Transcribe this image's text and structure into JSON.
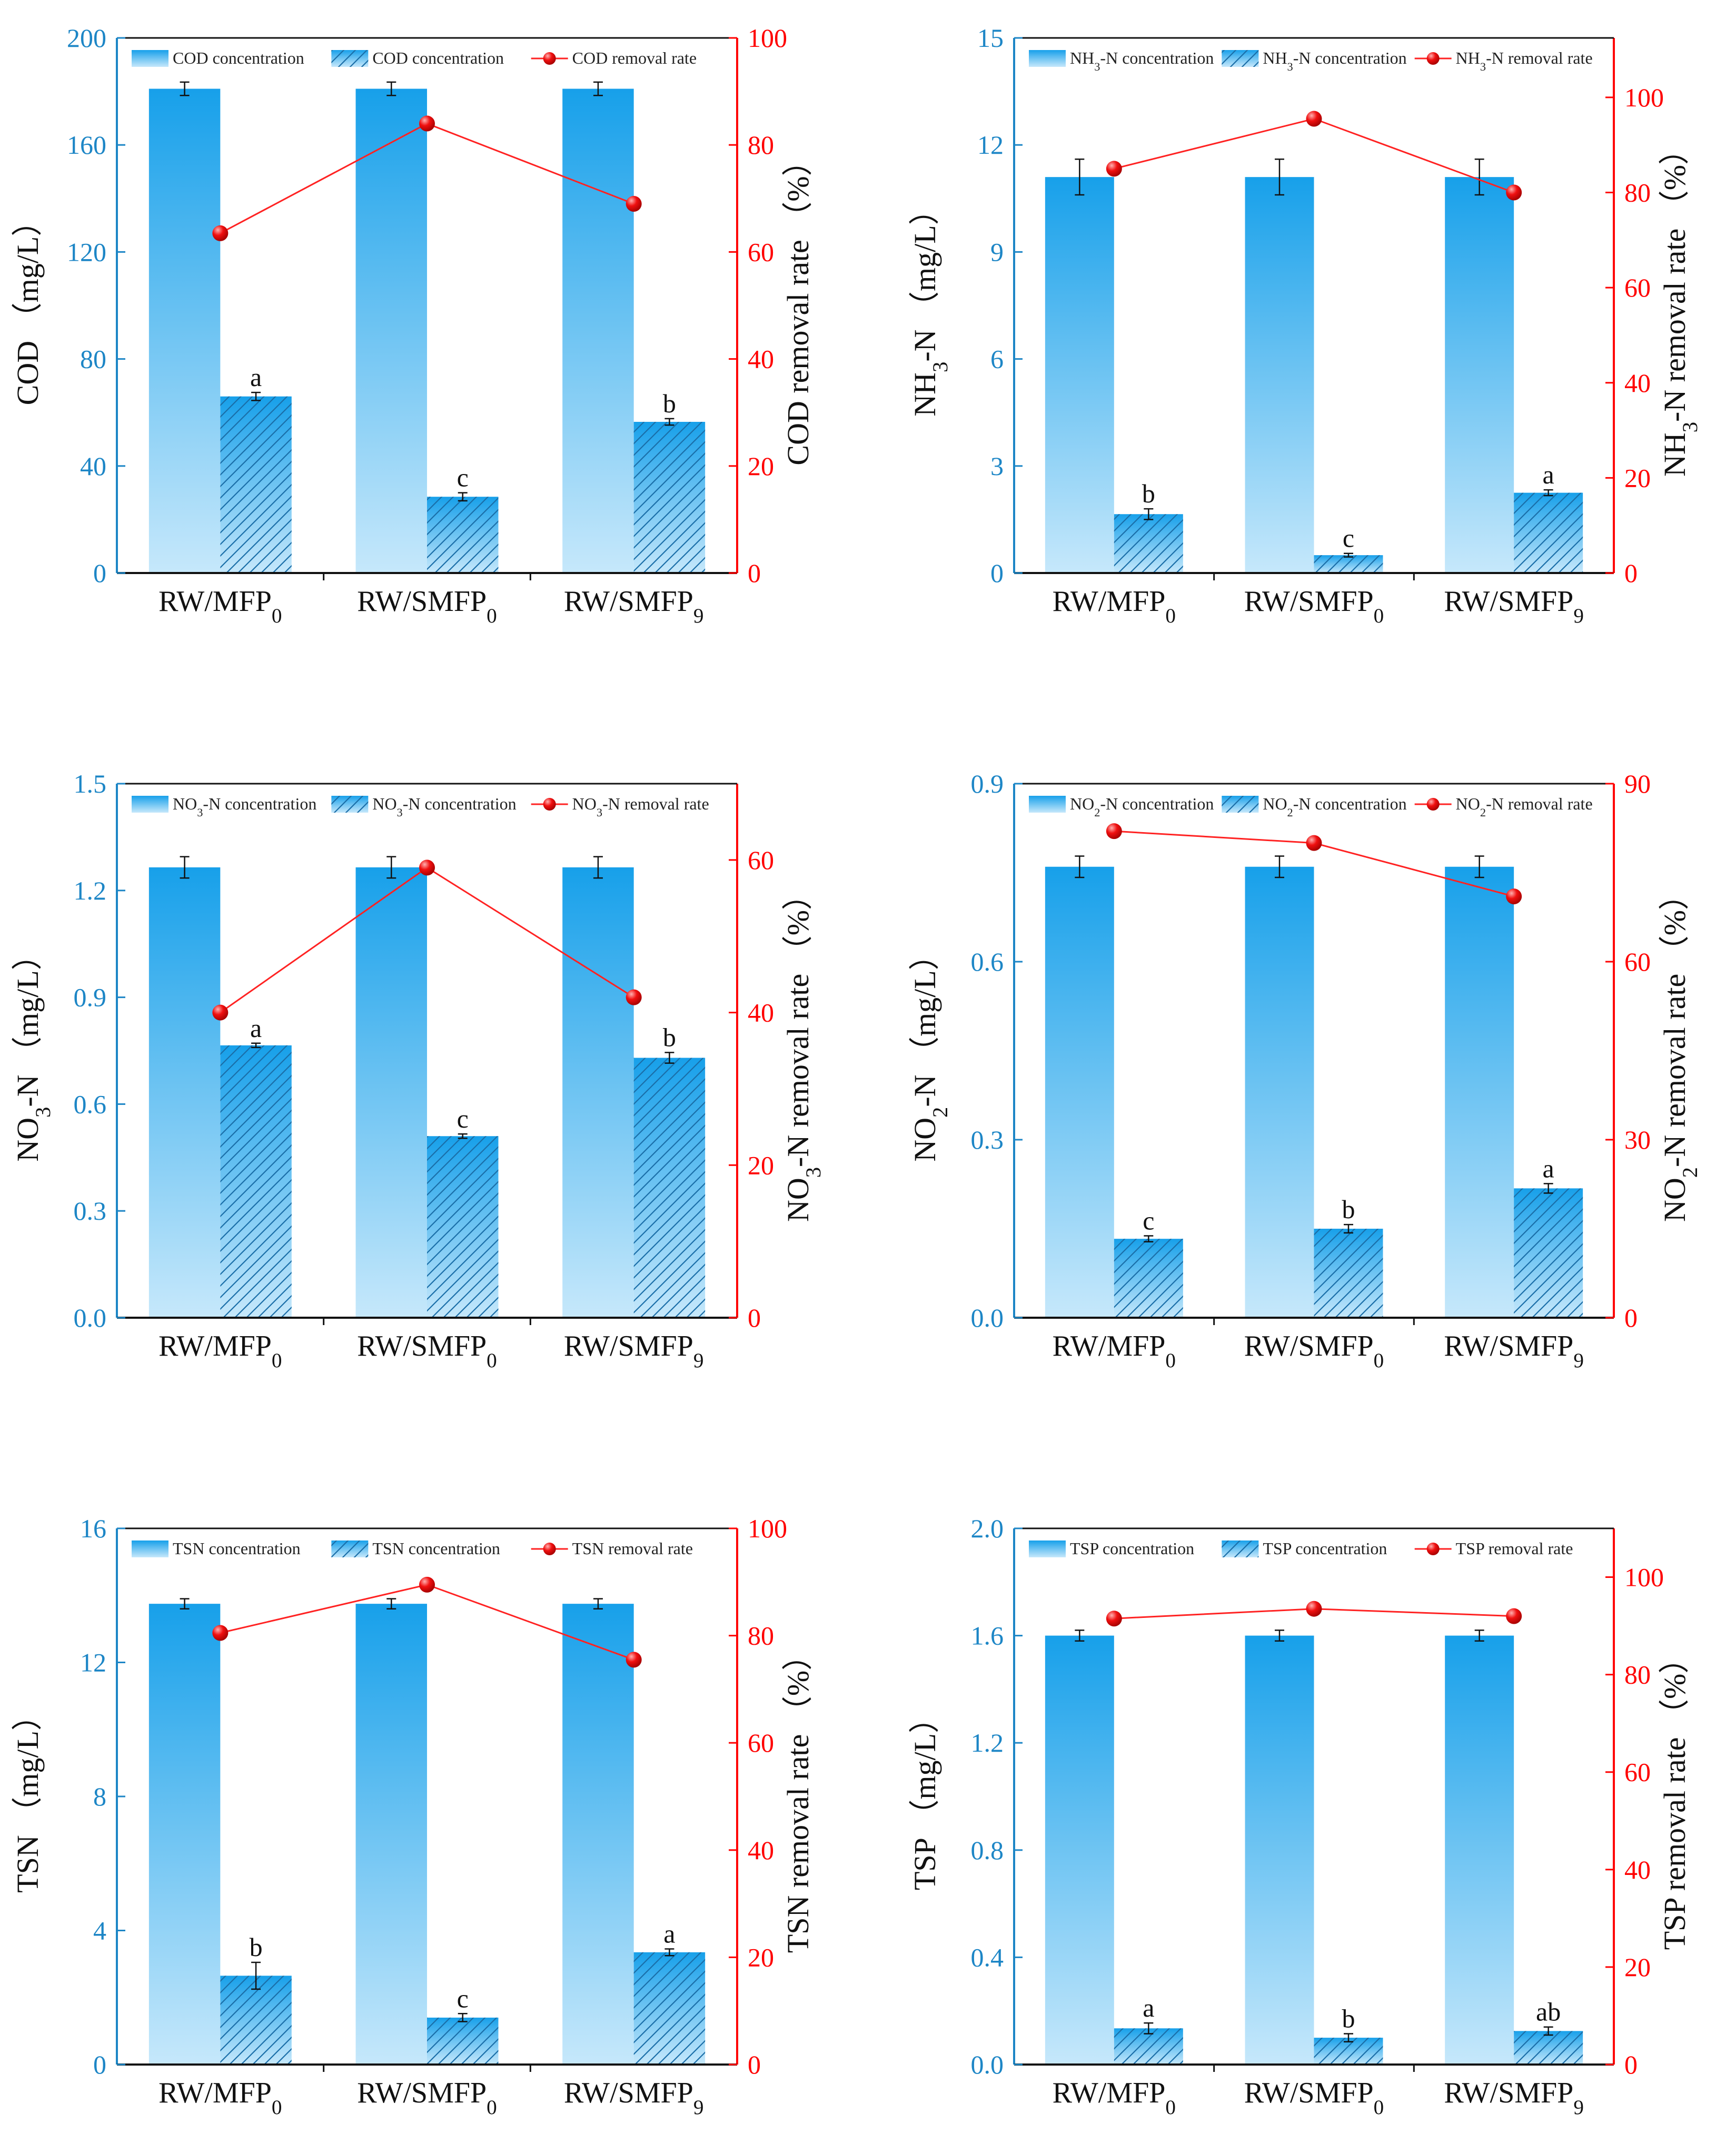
{
  "colors": {
    "left_axis": "#1d86c6",
    "right_axis": "#ff0000",
    "bar_top": "#17a0ea",
    "bar_bottom": "#c6e8fb",
    "line": "#ff2222",
    "marker": "#e00000"
  },
  "chart_data": [
    {
      "type": "bar",
      "id": "cod",
      "categories": [
        [
          "RW/MFP",
          "0"
        ],
        [
          "RW/SMFP",
          "0"
        ],
        [
          "RW/SMFP",
          "9"
        ]
      ],
      "influent": [
        181,
        181,
        181
      ],
      "influent_err": [
        2.5,
        2.5,
        2.5
      ],
      "effluent": [
        66,
        28.5,
        56.5
      ],
      "effluent_err": [
        1.5,
        1.5,
        1.2
      ],
      "letters": [
        "a",
        "c",
        "b"
      ],
      "removal": [
        63.5,
        84,
        69
      ],
      "ylim": [
        0,
        200
      ],
      "yticks": [
        0,
        40,
        80,
        120,
        160,
        200
      ],
      "ylim_right": [
        0,
        100
      ],
      "yticks_right": [
        0,
        20,
        40,
        60,
        80,
        100
      ],
      "ylabel": [
        [
          "COD （mg/L）",
          ""
        ]
      ],
      "ylabel_right": [
        [
          "COD removal rate （%）",
          ""
        ]
      ],
      "legend": [
        [
          [
            "COD concentration",
            ""
          ]
        ],
        [
          [
            "COD concentration",
            ""
          ]
        ],
        [
          [
            "COD removal rate",
            ""
          ]
        ]
      ]
    },
    {
      "type": "bar",
      "id": "nh3",
      "categories": [
        [
          "RW/MFP",
          "0"
        ],
        [
          "RW/SMFP",
          "0"
        ],
        [
          "RW/SMFP",
          "9"
        ]
      ],
      "influent": [
        11.1,
        11.1,
        11.1
      ],
      "influent_err": [
        0.5,
        0.5,
        0.5
      ],
      "effluent": [
        1.65,
        0.5,
        2.25
      ],
      "effluent_err": [
        0.15,
        0.05,
        0.08
      ],
      "letters": [
        "b",
        "c",
        "a"
      ],
      "removal": [
        85,
        95.5,
        80
      ],
      "ylim": [
        0,
        15
      ],
      "yticks": [
        0,
        3,
        6,
        9,
        12,
        15
      ],
      "ylim_right": [
        0,
        112.5
      ],
      "yticks_right": [
        0,
        20,
        40,
        60,
        80,
        100
      ],
      "ylabel": [
        [
          "NH",
          ""
        ],
        [
          "3",
          "sub"
        ],
        [
          "-N （mg/L）",
          ""
        ]
      ],
      "ylabel_right": [
        [
          "NH",
          ""
        ],
        [
          "3",
          "sub"
        ],
        [
          "-N removal rate （%）",
          ""
        ]
      ],
      "legend": [
        [
          [
            "NH",
            ""
          ],
          [
            "3",
            "sub"
          ],
          [
            "-N concentration",
            ""
          ]
        ],
        [
          [
            "NH",
            ""
          ],
          [
            "3",
            "sub"
          ],
          [
            "-N concentration",
            ""
          ]
        ],
        [
          [
            "NH",
            ""
          ],
          [
            "3",
            "sub"
          ],
          [
            "-N removal rate",
            ""
          ]
        ]
      ]
    },
    {
      "type": "bar",
      "id": "no3",
      "categories": [
        [
          "RW/MFP",
          "0"
        ],
        [
          "RW/SMFP",
          "0"
        ],
        [
          "RW/SMFP",
          "9"
        ]
      ],
      "influent": [
        1.265,
        1.265,
        1.265
      ],
      "influent_err": [
        0.03,
        0.03,
        0.03
      ],
      "effluent": [
        0.765,
        0.51,
        0.73
      ],
      "effluent_err": [
        0.006,
        0.006,
        0.015
      ],
      "letters": [
        "a",
        "c",
        "b"
      ],
      "removal": [
        40,
        59,
        42
      ],
      "ylim": [
        0,
        1.5
      ],
      "yticks": [
        0.0,
        0.3,
        0.6,
        0.9,
        1.2,
        1.5
      ],
      "ylim_right": [
        0,
        70
      ],
      "yticks_right": [
        0,
        20,
        40,
        60
      ],
      "ylabel": [
        [
          "NO",
          ""
        ],
        [
          "3",
          "sub"
        ],
        [
          "-N （mg/L）",
          ""
        ]
      ],
      "ylabel_right": [
        [
          "NO",
          ""
        ],
        [
          "3",
          "sub"
        ],
        [
          "-N removal rate （%）",
          ""
        ]
      ],
      "legend": [
        [
          [
            "NO",
            ""
          ],
          [
            "3",
            "sub"
          ],
          [
            "-N concentration",
            ""
          ]
        ],
        [
          [
            "NO",
            ""
          ],
          [
            "3",
            "sub"
          ],
          [
            "-N concentration",
            ""
          ]
        ],
        [
          [
            "NO",
            ""
          ],
          [
            "3",
            "sub"
          ],
          [
            "-N removal rate",
            ""
          ]
        ]
      ]
    },
    {
      "type": "bar",
      "id": "no2",
      "categories": [
        [
          "RW/MFP",
          "0"
        ],
        [
          "RW/SMFP",
          "0"
        ],
        [
          "RW/SMFP",
          "9"
        ]
      ],
      "influent": [
        0.76,
        0.76,
        0.76
      ],
      "influent_err": [
        0.018,
        0.018,
        0.018
      ],
      "effluent": [
        0.133,
        0.15,
        0.218
      ],
      "effluent_err": [
        0.005,
        0.007,
        0.008
      ],
      "letters": [
        "c",
        "b",
        "a"
      ],
      "removal": [
        82,
        80,
        71
      ],
      "ylim": [
        0,
        0.9
      ],
      "yticks": [
        0.0,
        0.3,
        0.6,
        0.9
      ],
      "ylim_right": [
        0,
        90
      ],
      "yticks_right": [
        0,
        30,
        60,
        90
      ],
      "ylabel": [
        [
          "NO",
          ""
        ],
        [
          "2",
          "sub"
        ],
        [
          "-N （mg/L）",
          ""
        ]
      ],
      "ylabel_right": [
        [
          "NO",
          ""
        ],
        [
          "2",
          "sub"
        ],
        [
          "-N removal rate （%）",
          ""
        ]
      ],
      "legend": [
        [
          [
            "NO",
            ""
          ],
          [
            "2",
            "sub"
          ],
          [
            "-N concentration",
            ""
          ]
        ],
        [
          [
            "NO",
            ""
          ],
          [
            "2",
            "sub"
          ],
          [
            "-N concentration",
            ""
          ]
        ],
        [
          [
            "NO",
            ""
          ],
          [
            "2",
            "sub"
          ],
          [
            "-N removal rate",
            ""
          ]
        ]
      ]
    },
    {
      "type": "bar",
      "id": "tsn",
      "categories": [
        [
          "RW/MFP",
          "0"
        ],
        [
          "RW/SMFP",
          "0"
        ],
        [
          "RW/SMFP",
          "9"
        ]
      ],
      "influent": [
        13.75,
        13.75,
        13.75
      ],
      "influent_err": [
        0.15,
        0.15,
        0.15
      ],
      "effluent": [
        2.65,
        1.4,
        3.35
      ],
      "effluent_err": [
        0.4,
        0.12,
        0.1
      ],
      "letters": [
        "b",
        "c",
        "a"
      ],
      "removal": [
        80.5,
        89.5,
        75.5
      ],
      "ylim": [
        0,
        16
      ],
      "yticks": [
        0,
        4,
        8,
        12,
        16
      ],
      "ylim_right": [
        0,
        100
      ],
      "yticks_right": [
        0,
        20,
        40,
        60,
        80,
        100
      ],
      "ylabel": [
        [
          "TSN （mg/L）",
          ""
        ]
      ],
      "ylabel_right": [
        [
          "TSN removal rate （%）",
          ""
        ]
      ],
      "legend": [
        [
          [
            "TSN concentration",
            ""
          ]
        ],
        [
          [
            "TSN concentration",
            ""
          ]
        ],
        [
          [
            "TSN removal rate",
            ""
          ]
        ]
      ]
    },
    {
      "type": "bar",
      "id": "tsp",
      "categories": [
        [
          "RW/MFP",
          "0"
        ],
        [
          "RW/SMFP",
          "0"
        ],
        [
          "RW/SMFP",
          "9"
        ]
      ],
      "influent": [
        1.6,
        1.6,
        1.6
      ],
      "influent_err": [
        0.02,
        0.02,
        0.02
      ],
      "effluent": [
        0.135,
        0.1,
        0.125
      ],
      "effluent_err": [
        0.02,
        0.015,
        0.015
      ],
      "letters": [
        "a",
        "b",
        "ab"
      ],
      "removal": [
        91.5,
        93.5,
        92
      ],
      "ylim": [
        0,
        2.0
      ],
      "yticks": [
        0.0,
        0.4,
        0.8,
        1.2,
        1.6,
        2.0
      ],
      "ylim_right": [
        0,
        110
      ],
      "yticks_right": [
        0,
        20,
        40,
        60,
        80,
        100
      ],
      "ylabel": [
        [
          "TSP （mg/L）",
          ""
        ]
      ],
      "ylabel_right": [
        [
          "TSP removal rate （%）",
          ""
        ]
      ],
      "legend": [
        [
          [
            "TSP concentration",
            ""
          ]
        ],
        [
          [
            "TSP concentration",
            ""
          ]
        ],
        [
          [
            "TSP removal rate",
            ""
          ]
        ]
      ]
    }
  ]
}
